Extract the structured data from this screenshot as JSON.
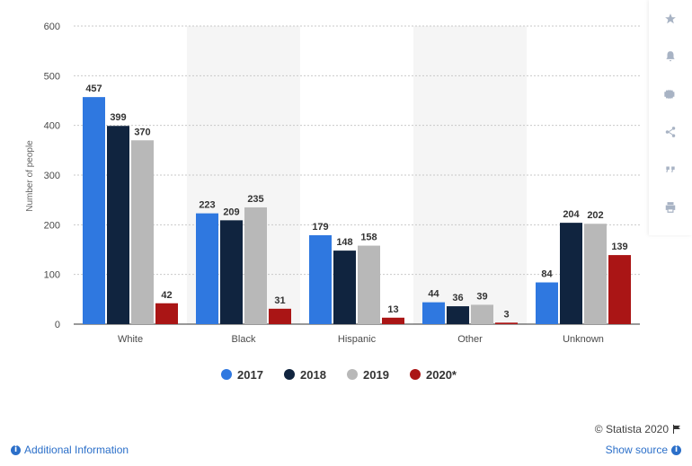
{
  "chart_data": {
    "type": "bar",
    "categories": [
      "White",
      "Black",
      "Hispanic",
      "Other",
      "Unknown"
    ],
    "series": [
      {
        "name": "2017",
        "values": [
          457,
          223,
          179,
          44,
          84
        ],
        "color": "#2f78e0"
      },
      {
        "name": "2018",
        "values": [
          399,
          209,
          148,
          36,
          204
        ],
        "color": "#10243f"
      },
      {
        "name": "2019",
        "values": [
          370,
          235,
          158,
          39,
          202
        ],
        "color": "#b8b8b8"
      },
      {
        "name": "2020*",
        "values": [
          42,
          31,
          13,
          3,
          139
        ],
        "color": "#aa1515"
      }
    ],
    "ylabel": "Number of people",
    "ylim": [
      0,
      600
    ],
    "yticks": [
      0,
      100,
      200,
      300,
      400,
      500,
      600
    ],
    "grid": true,
    "legend_position": "bottom-center"
  },
  "toolbar": {
    "icons": [
      "star-icon",
      "bell-icon",
      "gear-icon",
      "share-icon",
      "quote-icon",
      "print-icon"
    ]
  },
  "footer": {
    "credit": "© Statista 2020",
    "additional_info": "Additional Information",
    "show_source": "Show source"
  }
}
